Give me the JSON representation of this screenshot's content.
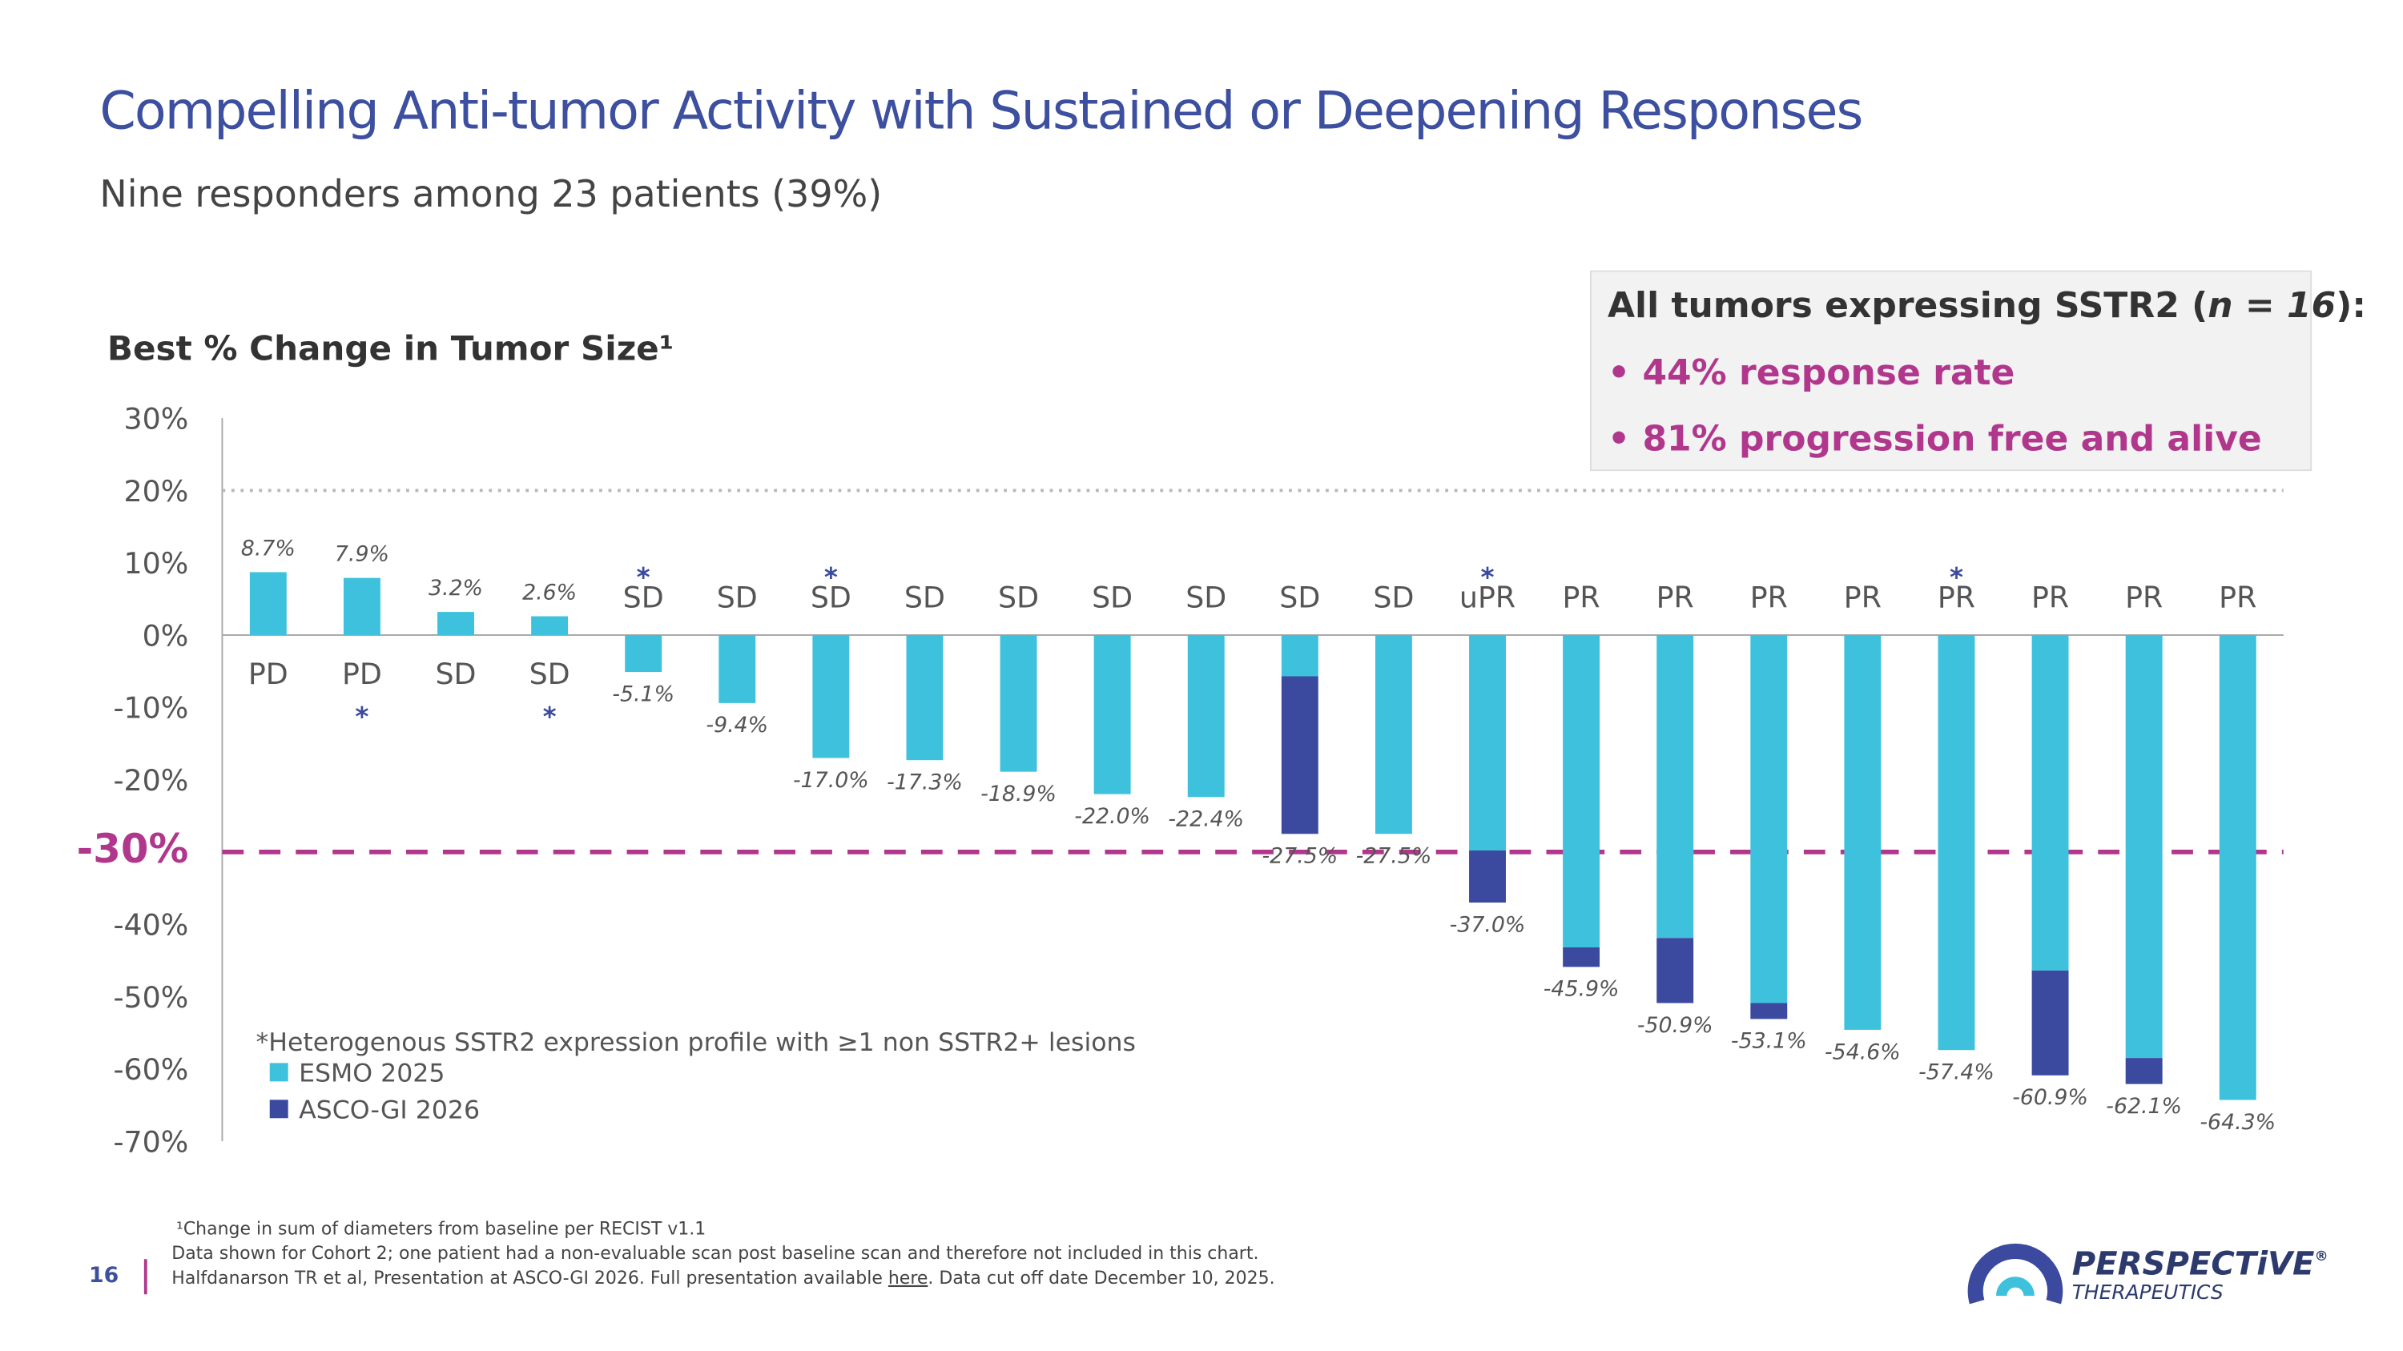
{
  "header": {
    "title": "Compelling Anti-tumor Activity with Sustained or Deepening Responses",
    "subtitle": "Nine responders among 23 patients (39%)"
  },
  "box": {
    "heading": [
      "All tumors expressing SSTR2 (",
      "n = 16",
      "):"
    ],
    "bullets": [
      "44% response rate",
      "81% progression free and alive"
    ]
  },
  "chart_data": {
    "type": "bar",
    "stacked": true,
    "title": "Best % Change in Tumor Size¹",
    "categories": [
      "PD",
      "PD",
      "SD",
      "SD",
      "SD",
      "SD",
      "SD",
      "SD",
      "SD",
      "SD",
      "SD",
      "SD",
      "SD",
      "uPR",
      "PR",
      "PR",
      "PR",
      "PR",
      "PR",
      "PR",
      "PR",
      "PR"
    ],
    "notes": [
      null,
      "*",
      null,
      "*",
      "*",
      null,
      "*",
      null,
      null,
      null,
      null,
      null,
      null,
      "*",
      null,
      null,
      null,
      null,
      "*",
      null,
      null,
      null
    ],
    "series": [
      {
        "name": "ESMO 2025",
        "color": "#3ec1dc",
        "values": [
          8.7,
          7.9,
          3.2,
          2.6,
          -5.1,
          -9.4,
          -17.0,
          -17.3,
          -18.9,
          -22.0,
          -22.4,
          -5.7,
          -27.5,
          -29.8,
          -43.2,
          -41.9,
          -50.9,
          -54.6,
          -57.4,
          -46.4,
          -58.5,
          -64.3
        ]
      },
      {
        "name": "ASCO-GI 2026",
        "color": "#3b4a9e",
        "values": [
          null,
          null,
          null,
          null,
          null,
          null,
          null,
          null,
          null,
          null,
          null,
          -21.8,
          null,
          -7.2,
          -2.7,
          -9.0,
          -2.2,
          null,
          null,
          -14.5,
          -3.6,
          null
        ]
      }
    ],
    "best_change": {
      "values": [
        8.7,
        7.9,
        3.2,
        2.6,
        -5.1,
        -9.4,
        -17.0,
        -17.3,
        -18.9,
        -22.0,
        -22.4,
        -27.5,
        -27.5,
        -37.0,
        -45.9,
        -50.9,
        -53.1,
        -54.6,
        -57.4,
        -60.9,
        -62.1,
        -64.3
      ],
      "value_labels": [
        "8.7%",
        "7.9%",
        "3.2%",
        "2.6%",
        "-5.1%",
        "-9.4%",
        "-17.0%",
        "-17.3%",
        "-18.9%",
        "-22.0%",
        "-22.4%",
        "-27.5%",
        "-27.5%",
        "-37.0%",
        "-45.9%",
        "-50.9%",
        "-53.1%",
        "-54.6%",
        "-57.4%",
        "-60.9%",
        "-62.1%",
        "-64.3%"
      ]
    },
    "ylim": [
      -70,
      30
    ],
    "yticks": [
      {
        "value": 30,
        "label": "30%"
      },
      {
        "value": 20,
        "label": "20%"
      },
      {
        "value": 10,
        "label": "10%"
      },
      {
        "value": 0,
        "label": "0%"
      },
      {
        "value": -10,
        "label": "-10%"
      },
      {
        "value": -20,
        "label": "-20%"
      },
      {
        "value": -30,
        "label": "-30%"
      },
      {
        "value": -40,
        "label": "-40%"
      },
      {
        "value": -50,
        "label": "-50%"
      },
      {
        "value": -60,
        "label": "-60%"
      },
      {
        "value": -70,
        "label": "-70%"
      }
    ],
    "reference_lines": [
      {
        "value": 20,
        "style": "dotted",
        "color": "#b8b8b8"
      },
      {
        "value": -30,
        "style": "dashed",
        "color": "#b1378d"
      }
    ],
    "note": "*Heterogenous SSTR2 expression profile with ≥1 non SSTR2+ lesions",
    "legend": "bottom-left"
  },
  "footer": {
    "page": "16",
    "lines": [
      "¹Change in sum of diameters from baseline per RECIST v1.1",
      "Data shown for Cohort 2; one patient had a non-evaluable scan post baseline scan and therefore not included in this chart."
    ],
    "source": [
      "Halfdanarson TR et al, Presentation at ASCO-GI 2026. Full presentation available ",
      "here",
      ". Data cut off date December 10, 2025."
    ],
    "logo": [
      "PERSPECTiVE",
      "®",
      "THERAPEUTICS"
    ]
  }
}
